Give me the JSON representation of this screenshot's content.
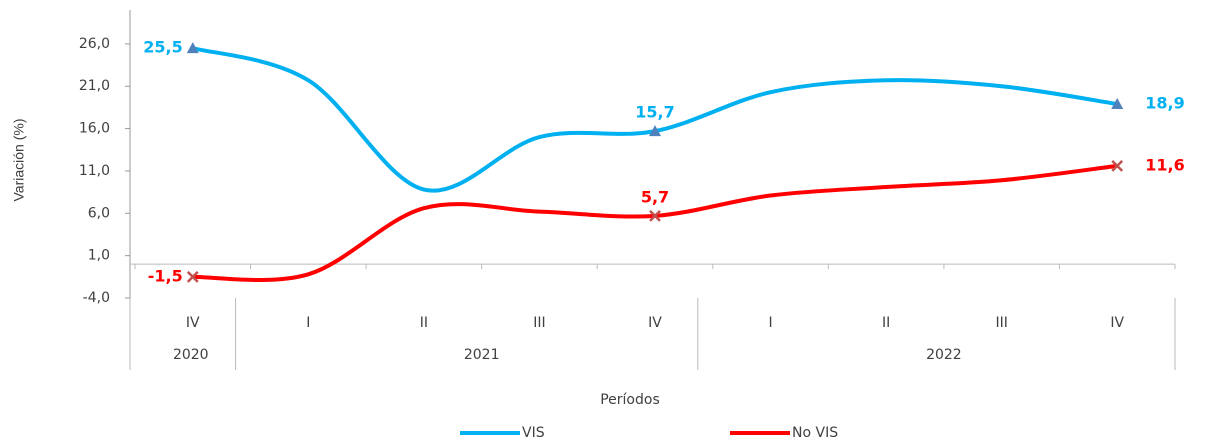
{
  "chart_data": {
    "type": "line",
    "x_label": "Períodos",
    "y_label": "Variación (%)",
    "categories": [
      "IV",
      "I",
      "II",
      "III",
      "IV",
      "I",
      "II",
      "III",
      "IV"
    ],
    "category_groups": [
      {
        "name": "2020",
        "count": 1
      },
      {
        "name": "2021",
        "count": 4
      },
      {
        "name": "2022",
        "count": 4
      }
    ],
    "series": [
      {
        "name": "VIS",
        "color": "#00b0f0",
        "marker": "triangle",
        "values": [
          25.5,
          21.7,
          8.8,
          15.0,
          15.7,
          20.3,
          21.7,
          21.0,
          18.9
        ],
        "value_labels": [
          "25,5",
          null,
          null,
          null,
          "15,7",
          null,
          null,
          null,
          "18,9"
        ]
      },
      {
        "name": "No VIS",
        "color": "#ff0000",
        "marker": "x",
        "values": [
          -1.5,
          -1.2,
          6.6,
          6.2,
          5.7,
          8.1,
          9.1,
          9.9,
          11.6
        ],
        "value_labels": [
          "-1,5",
          null,
          null,
          null,
          "5,7",
          null,
          null,
          null,
          "11,6"
        ]
      }
    ],
    "ylim": [
      -4,
      30
    ],
    "yticks": [
      {
        "value": -4,
        "label": "-4,0"
      },
      {
        "value": 1,
        "label": "1,0"
      },
      {
        "value": 6,
        "label": "6,0"
      },
      {
        "value": 11,
        "label": "11,0"
      },
      {
        "value": 16,
        "label": "16,0"
      },
      {
        "value": 21,
        "label": "21,0"
      },
      {
        "value": 26,
        "label": "26,0"
      }
    ],
    "legend": "bottom"
  }
}
